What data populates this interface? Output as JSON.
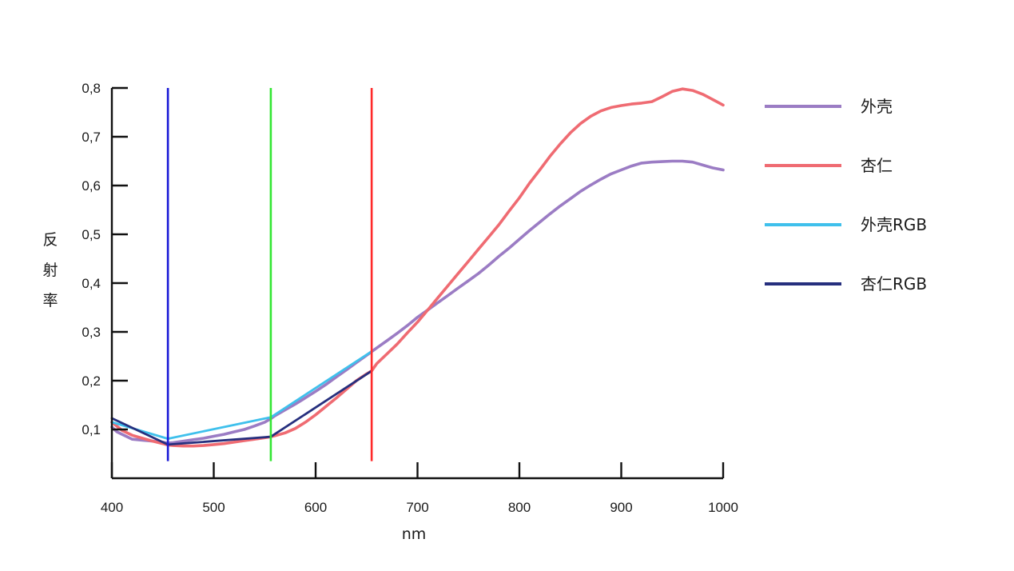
{
  "chart_data": {
    "type": "line",
    "title": "",
    "xlabel": "nm",
    "ylabel": "反射率",
    "xlim": [
      400,
      1000
    ],
    "ylim": [
      0,
      0.8
    ],
    "xticks": [
      400,
      500,
      600,
      700,
      800,
      900,
      1000
    ],
    "xtick_labels": [
      "400",
      "500",
      "600",
      "700",
      "800",
      "900",
      "1000"
    ],
    "yticks": [
      0.1,
      0.2,
      0.3,
      0.4,
      0.5,
      0.6,
      0.7,
      0.8
    ],
    "ytick_labels": [
      "0,1",
      "0,2",
      "0,3",
      "0,4",
      "0,5",
      "0,6",
      "0,7",
      "0,8"
    ],
    "grid": false,
    "legend_position": "right",
    "vertical_lines": [
      {
        "x": 455,
        "y_range": [
          0.035,
          0.8
        ],
        "color": "#1a1ad6"
      },
      {
        "x": 556,
        "y_range": [
          0.035,
          0.8
        ],
        "color": "#33e633"
      },
      {
        "x": 655,
        "y_range": [
          0.035,
          0.8
        ],
        "color": "#ff2a2a"
      }
    ],
    "series": [
      {
        "name": "外壳",
        "color": "#9b7cc4",
        "x": [
          400,
          405,
          410,
          415,
          420,
          430,
          440,
          450,
          455,
          460,
          470,
          480,
          490,
          500,
          510,
          520,
          530,
          540,
          550,
          556,
          560,
          570,
          580,
          590,
          600,
          610,
          620,
          630,
          640,
          650,
          660,
          670,
          680,
          690,
          700,
          710,
          720,
          730,
          740,
          750,
          760,
          770,
          780,
          790,
          800,
          810,
          820,
          830,
          840,
          850,
          860,
          870,
          880,
          890,
          900,
          910,
          920,
          930,
          940,
          950,
          960,
          970,
          980,
          990,
          1000
        ],
        "y": [
          0.105,
          0.095,
          0.09,
          0.085,
          0.08,
          0.078,
          0.076,
          0.074,
          0.072,
          0.073,
          0.076,
          0.079,
          0.082,
          0.086,
          0.09,
          0.095,
          0.1,
          0.107,
          0.115,
          0.122,
          0.128,
          0.14,
          0.152,
          0.165,
          0.178,
          0.192,
          0.207,
          0.222,
          0.237,
          0.252,
          0.267,
          0.282,
          0.297,
          0.313,
          0.33,
          0.345,
          0.36,
          0.375,
          0.39,
          0.405,
          0.42,
          0.437,
          0.455,
          0.472,
          0.49,
          0.508,
          0.525,
          0.542,
          0.558,
          0.573,
          0.588,
          0.601,
          0.613,
          0.624,
          0.632,
          0.64,
          0.646,
          0.648,
          0.649,
          0.65,
          0.65,
          0.648,
          0.642,
          0.636,
          0.632
        ]
      },
      {
        "name": "杏仁",
        "color": "#ef6b72",
        "x": [
          400,
          410,
          420,
          430,
          440,
          450,
          455,
          460,
          470,
          480,
          490,
          500,
          510,
          520,
          530,
          540,
          550,
          556,
          560,
          570,
          580,
          590,
          600,
          610,
          620,
          630,
          640,
          650,
          655,
          660,
          670,
          680,
          690,
          700,
          710,
          720,
          730,
          740,
          750,
          760,
          770,
          780,
          790,
          800,
          810,
          820,
          830,
          840,
          850,
          860,
          870,
          880,
          890,
          900,
          910,
          920,
          930,
          940,
          950,
          960,
          970,
          980,
          990,
          1000
        ],
        "y": [
          0.115,
          0.098,
          0.088,
          0.082,
          0.076,
          0.071,
          0.068,
          0.067,
          0.066,
          0.066,
          0.067,
          0.069,
          0.071,
          0.074,
          0.077,
          0.08,
          0.083,
          0.085,
          0.087,
          0.093,
          0.102,
          0.115,
          0.13,
          0.147,
          0.164,
          0.182,
          0.2,
          0.214,
          0.22,
          0.235,
          0.255,
          0.275,
          0.298,
          0.32,
          0.345,
          0.37,
          0.395,
          0.42,
          0.445,
          0.47,
          0.495,
          0.52,
          0.548,
          0.575,
          0.605,
          0.632,
          0.66,
          0.685,
          0.708,
          0.727,
          0.742,
          0.753,
          0.76,
          0.764,
          0.767,
          0.769,
          0.772,
          0.782,
          0.793,
          0.798,
          0.795,
          0.787,
          0.776,
          0.765
        ]
      },
      {
        "name": "外壳RGB",
        "color": "#3fc0ec",
        "x": [
          400,
          455,
          556,
          655
        ],
        "y": [
          0.115,
          0.081,
          0.125,
          0.26
        ]
      },
      {
        "name": "杏仁RGB",
        "color": "#262f7e",
        "x": [
          400,
          455,
          556,
          655
        ],
        "y": [
          0.123,
          0.069,
          0.085,
          0.22
        ]
      }
    ]
  }
}
